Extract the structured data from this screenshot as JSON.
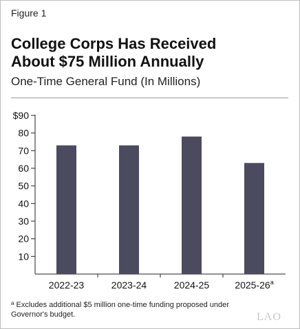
{
  "figure_label": "Figure 1",
  "title_line1": "College Corps Has Received",
  "title_line2": "About $75 Million Annually",
  "subtitle": "One-Time General Fund (In Millions)",
  "footnote_marker": "a",
  "footnote_line1": "Excludes additional $5 million one-time funding proposed under",
  "footnote_line2": "Governor's budget.",
  "logo_text": "LAO",
  "colors": {
    "bar": "#4b4a5e",
    "axis": "#222222"
  },
  "chart_data": {
    "type": "bar",
    "title": "College Corps Has Received About $75 Million Annually",
    "subtitle": "One-Time General Fund (In Millions)",
    "categories": [
      "2022-23",
      "2023-24",
      "2024-25",
      "2025-26"
    ],
    "category_superscripts": [
      "",
      "",
      "",
      "a"
    ],
    "values": [
      73,
      73,
      78,
      63
    ],
    "ylim": [
      0,
      90
    ],
    "yticks": [
      10,
      20,
      30,
      40,
      50,
      60,
      70,
      80,
      90
    ],
    "ytick_labels": [
      "10",
      "20",
      "30",
      "40",
      "50",
      "60",
      "70",
      "80",
      "$90"
    ],
    "xlabel": "",
    "ylabel": "",
    "grid": false,
    "legend": "none"
  }
}
